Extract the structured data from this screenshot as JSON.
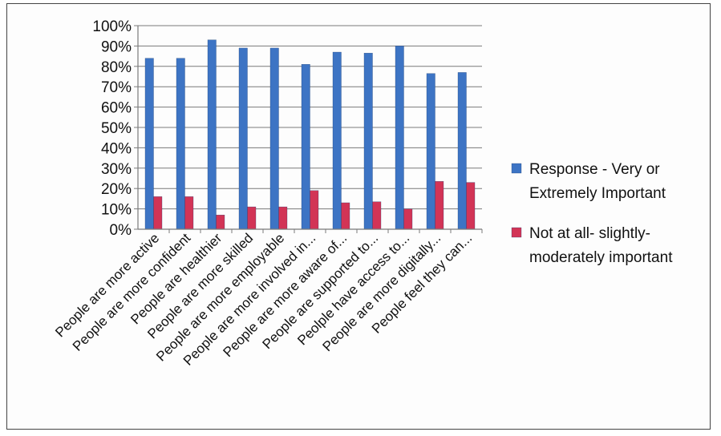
{
  "chart_data": {
    "type": "bar",
    "title": "",
    "xlabel": "",
    "ylabel": "",
    "ylim": [
      0,
      1
    ],
    "yticks": [
      "0%",
      "10%",
      "20%",
      "30%",
      "40%",
      "50%",
      "60%",
      "70%",
      "80%",
      "90%",
      "100%"
    ],
    "grid": true,
    "legend_position": "right",
    "categories": [
      "People are more active",
      "People are more confident",
      "People are healthier",
      "People are more skilled",
      "People are more employable",
      "People are more involved in...",
      "People are more aware of...",
      "People are supported to...",
      "Peolple have access to...",
      "People are more digitally...",
      "People feel they can..."
    ],
    "series": [
      {
        "name": "Response - Very or Extremely Important",
        "legend_lines": [
          "Response - Very or",
          "Extremely Important"
        ],
        "color": "#3d74c4",
        "values": [
          0.84,
          0.84,
          0.93,
          0.89,
          0.89,
          0.81,
          0.87,
          0.865,
          0.9,
          0.765,
          0.77
        ]
      },
      {
        "name": "Not at all- slightly-moderately important",
        "legend_lines": [
          "Not at all- slightly-",
          "moderately important"
        ],
        "color": "#d23456",
        "values": [
          0.16,
          0.16,
          0.07,
          0.11,
          0.11,
          0.19,
          0.13,
          0.135,
          0.1,
          0.235,
          0.23
        ]
      }
    ]
  }
}
